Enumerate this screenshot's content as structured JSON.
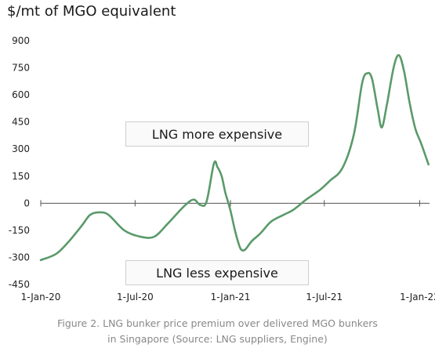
{
  "chart_data": {
    "type": "line",
    "title": "$/mt of MGO equivalent",
    "xlabel": "",
    "ylabel": "",
    "ylim": [
      -450,
      900
    ],
    "yticks": [
      900,
      750,
      600,
      450,
      300,
      150,
      0,
      -150,
      -300,
      -450
    ],
    "ytick_labels": [
      "900",
      "750",
      "600",
      "450",
      "300",
      "150",
      "0",
      "-150",
      "-300",
      "-450"
    ],
    "xticks": [
      "2020-01-01",
      "2020-07-01",
      "2021-01-01",
      "2021-07-01",
      "2022-01-01"
    ],
    "xtick_labels": [
      "1-Jan-20",
      "1-Jul-20",
      "1-Jan-21",
      "1-Jul-21",
      "1-Jan-22"
    ],
    "xlim": [
      "2020-01-01",
      "2022-01-20"
    ],
    "grid": false,
    "color": "#5a9a6a",
    "series": [
      {
        "x": [
          "2020-01-01",
          "2020-01-31",
          "2020-02-23",
          "2020-03-20",
          "2020-04-05",
          "2020-04-23",
          "2020-05-11",
          "2020-06-10",
          "2020-07-11",
          "2020-08-07",
          "2020-09-03",
          "2020-10-04",
          "2020-10-22",
          "2020-11-04",
          "2020-11-16",
          "2020-11-30",
          "2020-12-07",
          "2020-12-15",
          "2020-12-22",
          "2021-01-01",
          "2021-01-10",
          "2021-01-18",
          "2021-01-23",
          "2021-01-30",
          "2021-02-11",
          "2021-02-25",
          "2021-03-05",
          "2021-03-21",
          "2021-04-13",
          "2021-05-03",
          "2021-05-27",
          "2021-06-23",
          "2021-07-12",
          "2021-08-05",
          "2021-08-27",
          "2021-09-12",
          "2021-09-22",
          "2021-10-01",
          "2021-10-12",
          "2021-10-20",
          "2021-10-30",
          "2021-11-12",
          "2021-11-22",
          "2021-12-02",
          "2021-12-13",
          "2021-12-24",
          "2022-01-04",
          "2022-01-18"
        ],
        "y": [
          -315,
          -280,
          -215,
          -125,
          -65,
          -50,
          -65,
          -150,
          -185,
          -185,
          -110,
          -15,
          20,
          -10,
          10,
          220,
          200,
          150,
          60,
          -40,
          -155,
          -235,
          -260,
          -255,
          -210,
          -175,
          -150,
          -100,
          -65,
          -35,
          20,
          75,
          125,
          195,
          380,
          665,
          720,
          690,
          520,
          420,
          550,
          755,
          820,
          730,
          550,
          410,
          330,
          215
        ]
      }
    ],
    "annotations": [
      "LNG more expensive",
      "LNG less expensive"
    ]
  },
  "caption": {
    "line1": "Figure 2. LNG bunker price premium over delivered MGO bunkers",
    "line2": "in Singapore (Source: LNG suppliers, Engine)"
  }
}
